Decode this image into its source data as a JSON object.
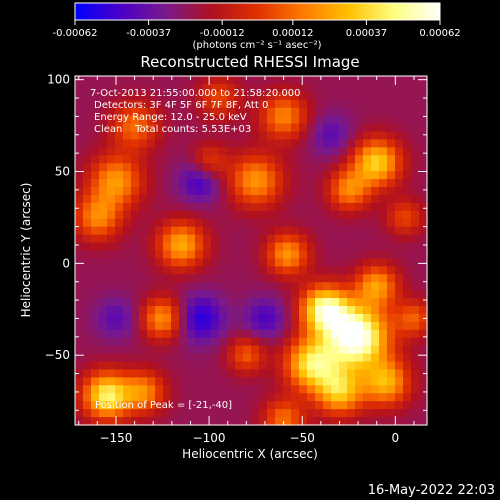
{
  "colorbar": {
    "ticks": [
      "-0.00062",
      "-0.00037",
      "-0.00012",
      "0.00012",
      "0.00037",
      "0.00062"
    ],
    "unit_label": "(photons cm⁻² s⁻¹ asec⁻²)",
    "range": [
      -0.00062,
      0.00062
    ],
    "stops": [
      "#0000ff",
      "#4a00c8",
      "#7a1a8a",
      "#b01020",
      "#e03000",
      "#ff7a00",
      "#ffc000",
      "#ffff80",
      "#ffffff"
    ]
  },
  "chart_data": {
    "type": "heatmap",
    "title": "Reconstructed RHESSI Image",
    "xlabel": "Heliocentric X (arcsec)",
    "ylabel": "Heliocentric Y (arcsec)",
    "xlim": [
      -172,
      17
    ],
    "ylim": [
      -88,
      102
    ],
    "xticks": [
      -150,
      -100,
      -50,
      0
    ],
    "yticks": [
      -50,
      0,
      50,
      100
    ],
    "info_lines": [
      "7-Oct-2013 21:55:00.000 to 21:58:20.000",
      "Detectors: 3F 4F 5F 6F 7F 8F, Att 0",
      "Energy Range: 12.0 - 25.0 keV",
      "Clean    Total counts: 5.53E+03"
    ],
    "peak_label": "Position of Peak = [-21,-40]",
    "peak": [
      -21,
      -40
    ],
    "sources": [
      {
        "x": -21,
        "y": -40,
        "amp": 1.0,
        "sigma": 12
      },
      {
        "x": -38,
        "y": -25,
        "amp": 0.8,
        "sigma": 9
      },
      {
        "x": -45,
        "y": -55,
        "amp": 0.7,
        "sigma": 10
      },
      {
        "x": -10,
        "y": -12,
        "amp": 0.5,
        "sigma": 8
      },
      {
        "x": -30,
        "y": -70,
        "amp": 0.6,
        "sigma": 9
      },
      {
        "x": -58,
        "y": 5,
        "amp": 0.5,
        "sigma": 8
      },
      {
        "x": -5,
        "y": -65,
        "amp": 0.55,
        "sigma": 9
      },
      {
        "x": -155,
        "y": -72,
        "amp": 0.75,
        "sigma": 9
      },
      {
        "x": -135,
        "y": -70,
        "amp": 0.45,
        "sigma": 8
      },
      {
        "x": -150,
        "y": 45,
        "amp": 0.5,
        "sigma": 10
      },
      {
        "x": -160,
        "y": 25,
        "amp": 0.45,
        "sigma": 9
      },
      {
        "x": -115,
        "y": 10,
        "amp": 0.55,
        "sigma": 9
      },
      {
        "x": -75,
        "y": 45,
        "amp": 0.5,
        "sigma": 10
      },
      {
        "x": -60,
        "y": 80,
        "amp": 0.45,
        "sigma": 9
      },
      {
        "x": -10,
        "y": 55,
        "amp": 0.65,
        "sigma": 9
      },
      {
        "x": -25,
        "y": 40,
        "amp": 0.45,
        "sigma": 8
      },
      {
        "x": -140,
        "y": 75,
        "amp": 0.4,
        "sigma": 9
      },
      {
        "x": -125,
        "y": -30,
        "amp": 0.5,
        "sigma": 8
      },
      {
        "x": -80,
        "y": -50,
        "amp": 0.35,
        "sigma": 7
      },
      {
        "x": 5,
        "y": 25,
        "amp": 0.3,
        "sigma": 7
      },
      {
        "x": -95,
        "y": 90,
        "amp": 0.3,
        "sigma": 8
      },
      {
        "x": -100,
        "y": 55,
        "amp": 0.3,
        "sigma": 7
      },
      {
        "x": -60,
        "y": -85,
        "amp": 0.4,
        "sigma": 8
      },
      {
        "x": 10,
        "y": -30,
        "amp": 0.35,
        "sigma": 7
      }
    ],
    "negatives": [
      {
        "x": -105,
        "y": -30,
        "amp": -0.35,
        "sigma": 9
      },
      {
        "x": -105,
        "y": 45,
        "amp": -0.3,
        "sigma": 8
      },
      {
        "x": -70,
        "y": -30,
        "amp": -0.25,
        "sigma": 8
      },
      {
        "x": -35,
        "y": 70,
        "amp": -0.2,
        "sigma": 8
      },
      {
        "x": -150,
        "y": -30,
        "amp": -0.2,
        "sigma": 8
      }
    ]
  },
  "footer": {
    "timestamp": "16-May-2022 22:03"
  }
}
